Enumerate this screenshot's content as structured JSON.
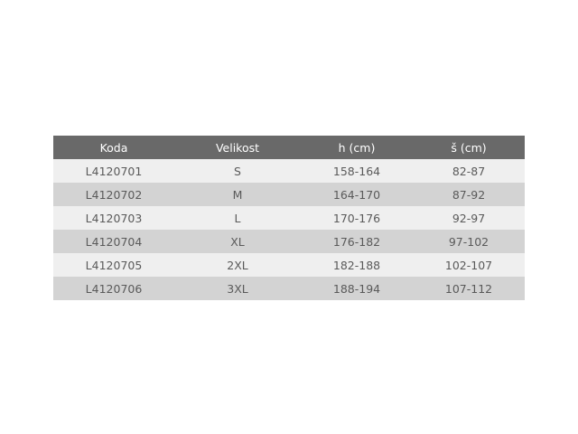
{
  "table": {
    "headers": [
      "Koda",
      "Velikost",
      "h (cm)",
      "š (cm)"
    ],
    "rows": [
      [
        "L4120701",
        "S",
        "158-164",
        "82-87"
      ],
      [
        "L4120702",
        "M",
        "164-170",
        "87-92"
      ],
      [
        "L4120703",
        "L",
        "170-176",
        "92-97"
      ],
      [
        "L4120704",
        "XL",
        "176-182",
        "97-102"
      ],
      [
        "L4120705",
        "2XL",
        "182-188",
        "102-107"
      ],
      [
        "L4120706",
        "3XL",
        "188-194",
        "107-112"
      ]
    ]
  },
  "colors": {
    "header_bg": "#696969",
    "row_light": "#efefef",
    "row_dark": "#d3d3d3"
  }
}
